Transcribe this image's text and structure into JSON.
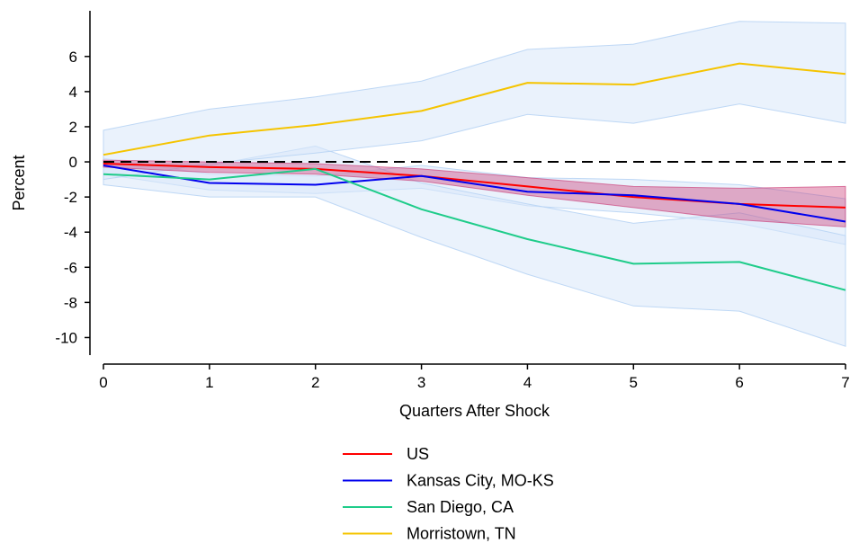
{
  "chart_data": {
    "type": "line",
    "title": "",
    "xlabel": "Quarters After Shock",
    "ylabel": "Percent",
    "x": [
      0,
      1,
      2,
      3,
      4,
      5,
      6,
      7
    ],
    "xlim": [
      0,
      7
    ],
    "ylim": [
      -11,
      8.6
    ],
    "xticks": [
      "0",
      "1",
      "2",
      "3",
      "4",
      "5",
      "6",
      "7"
    ],
    "yticks": [
      6,
      4,
      2,
      0,
      -2,
      -4,
      -6,
      -8,
      -10
    ],
    "ytick_labels": [
      "6",
      "4",
      "2",
      "0",
      "-2",
      "-4",
      "-6",
      "-8",
      "-10"
    ],
    "reference_line": {
      "y": 0,
      "style": "dashed",
      "color": "#000000"
    },
    "grid": false,
    "legend_position": "bottom",
    "series": [
      {
        "name": "US",
        "color": "#ff0000",
        "band_fill": "#c8306e",
        "band_opacity": 0.38,
        "values": [
          -0.1,
          -0.3,
          -0.4,
          -0.8,
          -1.4,
          -2.0,
          -2.4,
          -2.6
        ],
        "lower": [
          -0.3,
          -0.6,
          -0.7,
          -1.1,
          -1.9,
          -2.6,
          -3.3,
          -3.7
        ],
        "upper": [
          0.1,
          0.0,
          -0.1,
          -0.4,
          -0.9,
          -1.4,
          -1.5,
          -1.4
        ]
      },
      {
        "name": "Kansas City, MO-KS",
        "color": "#0000ee",
        "values": [
          -0.2,
          -1.2,
          -1.3,
          -0.8,
          -1.7,
          -1.9,
          -2.4,
          -3.4
        ],
        "lower": [
          -0.7,
          -1.6,
          -1.8,
          -1.5,
          -2.5,
          -2.9,
          -3.5,
          -4.7
        ],
        "upper": [
          0.2,
          -0.7,
          -0.8,
          -0.2,
          -0.9,
          -1.0,
          -1.3,
          -2.1
        ]
      },
      {
        "name": "San Diego, CA",
        "color": "#1fcc8a",
        "values": [
          -0.7,
          -1.0,
          -0.4,
          -2.7,
          -4.4,
          -5.8,
          -5.7,
          -7.3
        ],
        "lower": [
          -1.3,
          -2.0,
          -2.0,
          -4.3,
          -6.4,
          -8.2,
          -8.5,
          -10.5
        ],
        "upper": [
          -0.1,
          -0.2,
          0.9,
          -1.2,
          -2.4,
          -3.5,
          -2.9,
          -4.2
        ]
      },
      {
        "name": "Morristown, TN",
        "color": "#f5c400",
        "values": [
          0.4,
          1.5,
          2.1,
          2.9,
          4.5,
          4.4,
          5.6,
          5.0
        ],
        "lower": [
          -1.0,
          -0.1,
          0.5,
          1.2,
          2.7,
          2.2,
          3.3,
          2.2
        ],
        "upper": [
          1.8,
          3.0,
          3.7,
          4.6,
          6.4,
          6.7,
          8.0,
          7.9
        ]
      }
    ],
    "ci_band_fill": "#d8e8fa",
    "ci_band_stroke": "#b8d4f4"
  }
}
